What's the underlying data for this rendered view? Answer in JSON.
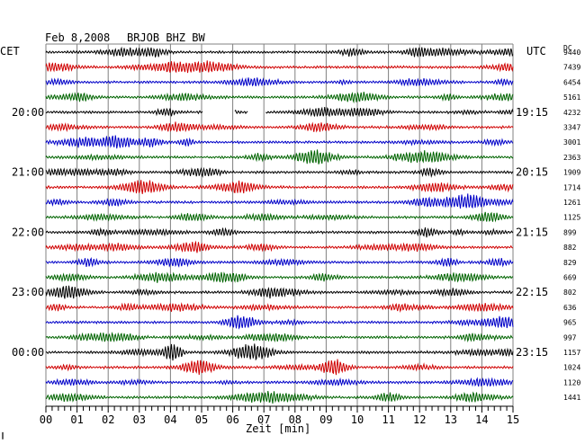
{
  "header": {
    "date": "Feb 8,2008",
    "station": "BRJOB BHZ BW",
    "left_tz": "CET",
    "right_tz": "UTC",
    "dc_label": "DC"
  },
  "footer": {
    "xlabel": "Zeit [min]",
    "corner_mark": "∥"
  },
  "chart_data": {
    "type": "line",
    "title": "Feb 8,2008  BRJOB BHZ BW",
    "xlabel": "Zeit [min]",
    "xlim": [
      0,
      15
    ],
    "x_ticks": [
      "00",
      "01",
      "02",
      "03",
      "04",
      "05",
      "06",
      "07",
      "08",
      "09",
      "10",
      "11",
      "12",
      "13",
      "14",
      "15"
    ],
    "trace_colors": [
      "#000000",
      "#d00000",
      "#0000c8",
      "#006400"
    ],
    "cet_labels": [
      {
        "row": 4,
        "text": "20:00"
      },
      {
        "row": 8,
        "text": "21:00"
      },
      {
        "row": 12,
        "text": "22:00"
      },
      {
        "row": 16,
        "text": "23:00"
      },
      {
        "row": 20,
        "text": "00:00"
      }
    ],
    "utc_labels": [
      {
        "row": 4,
        "text": "19:15"
      },
      {
        "row": 8,
        "text": "20:15"
      },
      {
        "row": 12,
        "text": "21:15"
      },
      {
        "row": 16,
        "text": "22:15"
      },
      {
        "row": 20,
        "text": "23:15"
      }
    ],
    "dc_offsets": [
      9440,
      7439,
      6454,
      5161,
      4232,
      3347,
      3001,
      2363,
      1909,
      1714,
      1261,
      1125,
      899,
      882,
      829,
      669,
      802,
      636,
      965,
      997,
      1157,
      1024,
      1120,
      1441
    ],
    "data_gaps": [
      {
        "row": 4,
        "from_min": 5.05,
        "to_min": 6.05
      },
      {
        "row": 4,
        "from_min": 6.5,
        "to_min": 7.05
      }
    ]
  }
}
